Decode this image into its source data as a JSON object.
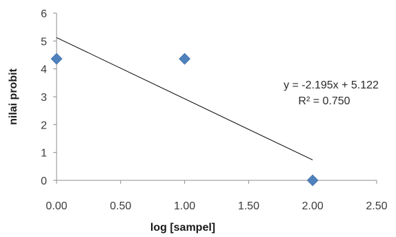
{
  "chart_data": {
    "type": "scatter",
    "xlabel": "log [sampel]",
    "ylabel": "nilai probit",
    "xlim": [
      0,
      2.5
    ],
    "ylim": [
      0,
      6
    ],
    "xticks": [
      "0.00",
      "0.50",
      "1.00",
      "1.50",
      "2.00",
      "2.50"
    ],
    "yticks": [
      "0",
      "1",
      "2",
      "3",
      "4",
      "5",
      "6"
    ],
    "grid": false,
    "legend": "none",
    "series": [
      {
        "x": [
          0.0,
          1.0,
          2.0
        ],
        "y": [
          4.36,
          4.36,
          0.0
        ],
        "marker": "diamond",
        "color": "#4f81bd"
      }
    ],
    "trendline": {
      "type": "linear",
      "slope": -2.195,
      "intercept": 5.122,
      "x_range": [
        0,
        2
      ],
      "color": "#000000"
    },
    "annotations": {
      "equation": "y = -2.195x + 5.122",
      "r_squared": "R² = 0.750"
    }
  }
}
